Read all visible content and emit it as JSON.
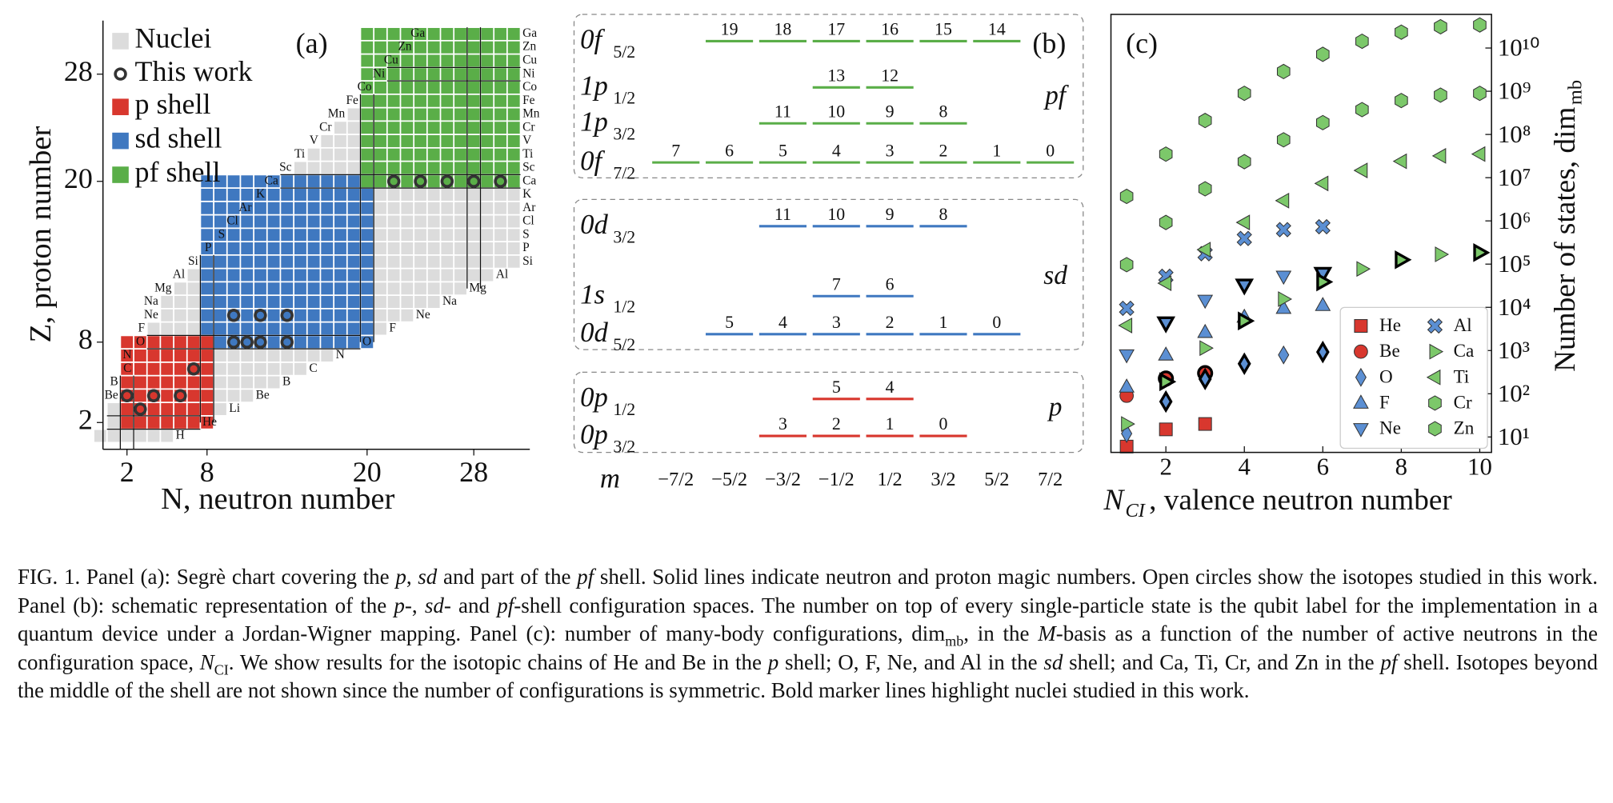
{
  "chart_data": [
    {
      "type": "segre",
      "label": "(a)",
      "xlabel": "N, neutron number",
      "ylabel": "Z, proton number",
      "xlim": [
        0.2,
        32.2
      ],
      "ylim": [
        0,
        32
      ],
      "xticks": [
        2,
        8,
        20,
        28
      ],
      "yticks": [
        2,
        8,
        20,
        28
      ],
      "legend": {
        "nuclei": "Nuclei",
        "this_work": "This work"
      },
      "nuclei_color": "#dcdcdc",
      "shells": [
        {
          "name": "p shell",
          "color": "#d8372e",
          "n_range": [
            2,
            8
          ],
          "z_range": [
            2,
            8
          ]
        },
        {
          "name": "sd shell",
          "color": "#3f78c0",
          "n_range": [
            8,
            20
          ],
          "z_range": [
            8,
            20
          ]
        },
        {
          "name": "pf shell",
          "color": "#5aae48",
          "n_range": [
            20,
            31
          ],
          "z_range": [
            20,
            31
          ]
        }
      ],
      "elements": [
        {
          "symbol": "H",
          "Z": 1
        },
        {
          "symbol": "He",
          "Z": 2
        },
        {
          "symbol": "Li",
          "Z": 3
        },
        {
          "symbol": "Be",
          "Z": 4
        },
        {
          "symbol": "B",
          "Z": 5
        },
        {
          "symbol": "C",
          "Z": 6
        },
        {
          "symbol": "N",
          "Z": 7
        },
        {
          "symbol": "O",
          "Z": 8
        },
        {
          "symbol": "F",
          "Z": 9
        },
        {
          "symbol": "Ne",
          "Z": 10
        },
        {
          "symbol": "Na",
          "Z": 11
        },
        {
          "symbol": "Mg",
          "Z": 12
        },
        {
          "symbol": "Al",
          "Z": 13
        },
        {
          "symbol": "Si",
          "Z": 14
        },
        {
          "symbol": "P",
          "Z": 15
        },
        {
          "symbol": "S",
          "Z": 16
        },
        {
          "symbol": "Cl",
          "Z": 17
        },
        {
          "symbol": "Ar",
          "Z": 18
        },
        {
          "symbol": "K",
          "Z": 19
        },
        {
          "symbol": "Ca",
          "Z": 20
        },
        {
          "symbol": "Sc",
          "Z": 21
        },
        {
          "symbol": "Ti",
          "Z": 22
        },
        {
          "symbol": "V",
          "Z": 23
        },
        {
          "symbol": "Cr",
          "Z": 24
        },
        {
          "symbol": "Mn",
          "Z": 25
        },
        {
          "symbol": "Fe",
          "Z": 26
        },
        {
          "symbol": "Co",
          "Z": 27
        },
        {
          "symbol": "Ni",
          "Z": 28
        },
        {
          "symbol": "Cu",
          "Z": 29
        },
        {
          "symbol": "Zn",
          "Z": 30
        },
        {
          "symbol": "Ga",
          "Z": 31
        }
      ],
      "this_work": {
        "N": [
          2,
          3,
          4,
          6,
          7,
          10,
          12,
          14,
          10,
          11,
          12,
          14,
          22,
          24,
          26,
          28,
          30
        ],
        "Z": [
          4,
          3,
          4,
          4,
          6,
          10,
          10,
          10,
          8,
          8,
          8,
          8,
          20,
          20,
          20,
          20,
          20
        ]
      }
    },
    {
      "type": "levels",
      "label": "(b)",
      "m_label": "m",
      "m_ticks": [
        {
          "value": -3.5,
          "label": "−7/2"
        },
        {
          "value": -2.5,
          "label": "−5/2"
        },
        {
          "value": -1.5,
          "label": "−3/2"
        },
        {
          "value": -0.5,
          "label": "−1/2"
        },
        {
          "value": 0.5,
          "label": "1/2"
        },
        {
          "value": 1.5,
          "label": "3/2"
        },
        {
          "value": 2.5,
          "label": "5/2"
        },
        {
          "value": 3.5,
          "label": "7/2"
        }
      ],
      "shells": [
        {
          "name": "pf",
          "color": "#5aae48",
          "orbitals": [
            {
              "label": "0f",
              "j": "5/2",
              "m": [
                -2.5,
                -1.5,
                -0.5,
                0.5,
                1.5,
                2.5
              ],
              "qubits": [
                19,
                18,
                17,
                16,
                15,
                14
              ]
            },
            {
              "label": "1p",
              "j": "1/2",
              "m": [
                -0.5,
                0.5
              ],
              "qubits": [
                13,
                12
              ]
            },
            {
              "label": "1p",
              "j": "3/2",
              "m": [
                -1.5,
                -0.5,
                0.5,
                1.5
              ],
              "qubits": [
                11,
                10,
                9,
                8
              ]
            },
            {
              "label": "0f",
              "j": "7/2",
              "m": [
                -3.5,
                -2.5,
                -1.5,
                -0.5,
                0.5,
                1.5,
                2.5,
                3.5
              ],
              "qubits": [
                7,
                6,
                5,
                4,
                3,
                2,
                1,
                0
              ]
            }
          ]
        },
        {
          "name": "sd",
          "color": "#3f78c0",
          "orbitals": [
            {
              "label": "0d",
              "j": "3/2",
              "m": [
                -1.5,
                -0.5,
                0.5,
                1.5
              ],
              "qubits": [
                11,
                10,
                9,
                8
              ]
            },
            {
              "label": "1s",
              "j": "1/2",
              "m": [
                -0.5,
                0.5
              ],
              "qubits": [
                7,
                6
              ]
            },
            {
              "label": "0d",
              "j": "5/2",
              "m": [
                -2.5,
                -1.5,
                -0.5,
                0.5,
                1.5,
                2.5
              ],
              "qubits": [
                5,
                4,
                3,
                2,
                1,
                0
              ]
            }
          ]
        },
        {
          "name": "p",
          "color": "#d8372e",
          "orbitals": [
            {
              "label": "0p",
              "j": "1/2",
              "m": [
                -0.5,
                0.5
              ],
              "qubits": [
                5,
                4
              ]
            },
            {
              "label": "0p",
              "j": "3/2",
              "m": [
                -1.5,
                -0.5,
                0.5,
                1.5
              ],
              "qubits": [
                3,
                2,
                1,
                0
              ]
            }
          ]
        }
      ]
    },
    {
      "type": "scatter",
      "label": "(c)",
      "xlabel": "N",
      "xlabel_sub": "CI",
      "xlabel_rest": ", valence neutron number",
      "ylabel": "Number of states, dim",
      "ylabel_sub": "mb",
      "log_y": true,
      "legend": "lower right",
      "xlim": [
        0.6,
        10.3
      ],
      "ylim": [
        4.4,
        60000000000
      ],
      "xticks": [
        2,
        4,
        6,
        8,
        10
      ],
      "yticks": [
        {
          "value": 10,
          "label": "10¹"
        },
        {
          "value": 100,
          "label": "10²"
        },
        {
          "value": 1000,
          "label": "10³"
        },
        {
          "value": 10000,
          "label": "10⁴"
        },
        {
          "value": 100000,
          "label": "10⁵"
        },
        {
          "value": 1000000,
          "label": "10⁶"
        },
        {
          "value": 10000000,
          "label": "10⁷"
        },
        {
          "value": 100000000,
          "label": "10⁸"
        },
        {
          "value": 1000000000,
          "label": "10⁹"
        },
        {
          "value": 10000000000,
          "label": "10¹⁰"
        }
      ],
      "series": [
        {
          "name": "He",
          "color": "#d8372e",
          "marker": "square",
          "x": [
            1,
            2,
            3
          ],
          "values": [
            6,
            15,
            20
          ],
          "bold": [
            false,
            false,
            false
          ]
        },
        {
          "name": "Be",
          "color": "#d8372e",
          "marker": "circle",
          "x": [
            1,
            2,
            3
          ],
          "values": [
            90,
            225,
            300
          ],
          "bold": [
            false,
            true,
            true
          ]
        },
        {
          "name": "O",
          "color": "#5b8fd3",
          "marker": "diamond",
          "x": [
            1,
            2,
            3,
            4,
            5,
            6
          ],
          "values": [
            12,
            66,
            220,
            495,
            792,
            924
          ],
          "bold": [
            false,
            true,
            true,
            true,
            false,
            true
          ]
        },
        {
          "name": "F",
          "color": "#5b8fd3",
          "marker": "triangle-up",
          "x": [
            1,
            2,
            3,
            4,
            5,
            6
          ],
          "values": [
            144,
            792,
            2640,
            5940,
            9504,
            11088
          ],
          "bold": [
            false,
            false,
            false,
            false,
            false,
            false
          ]
        },
        {
          "name": "Ne",
          "color": "#5b8fd3",
          "marker": "triangle-down",
          "x": [
            1,
            2,
            3,
            4,
            5,
            6
          ],
          "values": [
            792,
            4356,
            14520,
            32670,
            52272,
            60984
          ],
          "bold": [
            false,
            true,
            false,
            true,
            false,
            true
          ]
        },
        {
          "name": "Al",
          "color": "#5b8fd3",
          "marker": "x",
          "x": [
            1,
            2,
            3,
            4,
            5,
            6
          ],
          "values": [
            9504,
            52272,
            174240,
            392040,
            627264,
            731808
          ],
          "bold": [
            false,
            false,
            false,
            false,
            false,
            false
          ]
        },
        {
          "name": "Ca",
          "color": "#7cc86a",
          "marker": "triangle-right",
          "x": [
            1,
            2,
            3,
            4,
            5,
            6,
            7,
            8,
            9,
            10
          ],
          "values": [
            20,
            190,
            1140,
            4845,
            15504,
            38760,
            77520,
            125970,
            167960,
            184756
          ],
          "bold": [
            false,
            true,
            false,
            true,
            false,
            true,
            false,
            true,
            false,
            true
          ]
        },
        {
          "name": "Ti",
          "color": "#7cc86a",
          "marker": "triangle-left",
          "x": [
            1,
            2,
            3,
            4,
            5,
            6,
            7,
            8,
            9,
            10
          ],
          "values": [
            3800,
            36100,
            216600,
            920550,
            2945760,
            7364400,
            14728800,
            23934300,
            31912400,
            35103640
          ],
          "bold": [
            false,
            false,
            false,
            false,
            false,
            false,
            false,
            false,
            false,
            false
          ]
        },
        {
          "name": "Cr",
          "color": "#7cc86a",
          "marker": "hexagon",
          "x": [
            1,
            2,
            3,
            4,
            5,
            6,
            7,
            8,
            9,
            10
          ],
          "values": [
            96900,
            920550,
            5523300,
            23474025,
            75116880,
            187792200,
            375584400,
            610324650,
            813766200,
            895142820
          ],
          "bold": [
            false,
            false,
            false,
            false,
            false,
            false,
            false,
            false,
            false,
            false
          ]
        },
        {
          "name": "Zn",
          "color": "#7cc86a",
          "marker": "hexagon",
          "x": [
            1,
            2,
            3,
            4,
            5,
            6,
            7,
            8,
            9,
            10
          ],
          "values": [
            3695120,
            35103640,
            210621840,
            895142820,
            2864457024,
            7161142560,
            14322285120,
            23273713320,
            31031617760,
            34134779536
          ],
          "bold": [
            false,
            false,
            false,
            false,
            false,
            false,
            false,
            false,
            false,
            false
          ]
        }
      ]
    }
  ],
  "caption": [
    {
      "text": "FIG. 1. Panel (a): Segrè chart covering the "
    },
    {
      "text": "p",
      "style": "i"
    },
    {
      "text": ", "
    },
    {
      "text": "sd",
      "style": "i"
    },
    {
      "text": " and part of the "
    },
    {
      "text": "pf",
      "style": "i"
    },
    {
      "text": " shell. Solid lines indicate neutron and proton magic numbers. Open circles show the isotopes studied in this work. Panel (b): schematic representation of the "
    },
    {
      "text": "p",
      "style": "i"
    },
    {
      "text": "-, "
    },
    {
      "text": "sd",
      "style": "i"
    },
    {
      "text": "- and "
    },
    {
      "text": "pf",
      "style": "i"
    },
    {
      "text": "-shell configuration spaces. The number on top of every single-particle state is the qubit label for the implementation in a quantum device under a Jordan-Wigner mapping. Panel (c): number of many-body configurations, dim"
    },
    {
      "text": "mb",
      "style": "sub"
    },
    {
      "text": ", in the "
    },
    {
      "text": "M",
      "style": "i"
    },
    {
      "text": "-basis as a function of the number of active neutrons in the configuration space, "
    },
    {
      "text": "N",
      "style": "i"
    },
    {
      "text": "CI",
      "style": "sub"
    },
    {
      "text": ". We show results for the isotopic chains of He and Be in the "
    },
    {
      "text": "p",
      "style": "i"
    },
    {
      "text": " shell; O, F, Ne, and Al in the "
    },
    {
      "text": "sd",
      "style": "i"
    },
    {
      "text": " shell; and Ca, Ti, Cr, and Zn in the "
    },
    {
      "text": "pf",
      "style": "i"
    },
    {
      "text": " shell. Isotopes beyond the middle of the shell are not shown since the number of configurations is symmetric. Bold marker lines highlight nuclei studied in this work."
    }
  ]
}
